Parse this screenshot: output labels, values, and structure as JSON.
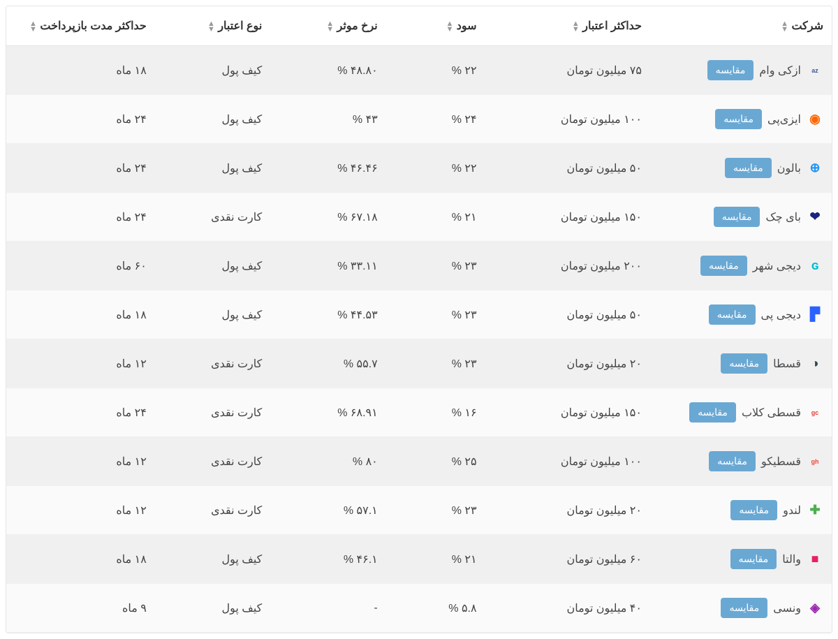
{
  "table": {
    "compare_label": "مقایسه",
    "columns": [
      {
        "key": "company",
        "label": "شرکت"
      },
      {
        "key": "max_credit",
        "label": "حداکثر اعتبار"
      },
      {
        "key": "profit",
        "label": "سود"
      },
      {
        "key": "effective_rate",
        "label": "نرخ موثر"
      },
      {
        "key": "credit_type",
        "label": "نوع اعتبار"
      },
      {
        "key": "max_repayment",
        "label": "حداکثر مدت بازپرداخت"
      }
    ],
    "rows": [
      {
        "company": "ازکی وام",
        "logo_color": "#3b5998",
        "logo_glyph": "az",
        "max_credit": "۷۵ میلیون تومان",
        "profit": "۲۲ %",
        "effective_rate": "۴۸.۸۰ %",
        "credit_type": "کیف پول",
        "max_repayment": "۱۸ ماه"
      },
      {
        "company": "ایزی‌پی",
        "logo_color": "#ff6600",
        "logo_glyph": "◉",
        "max_credit": "۱۰۰ میلیون تومان",
        "profit": "۲۴ %",
        "effective_rate": "۴۳ %",
        "credit_type": "کیف پول",
        "max_repayment": "۲۴ ماه"
      },
      {
        "company": "بالون",
        "logo_color": "#2196f3",
        "logo_glyph": "⊕",
        "max_credit": "۵۰ میلیون تومان",
        "profit": "۲۲ %",
        "effective_rate": "۴۶.۴۶ %",
        "credit_type": "کیف پول",
        "max_repayment": "۲۴ ماه"
      },
      {
        "company": "بای چک",
        "logo_color": "#1a237e",
        "logo_glyph": "❤",
        "max_credit": "۱۵۰ میلیون تومان",
        "profit": "۲۱ %",
        "effective_rate": "۶۷.۱۸ %",
        "credit_type": "کارت نقدی",
        "max_repayment": "۲۴ ماه"
      },
      {
        "company": "دیجی شهر",
        "logo_color": "#00bcd4",
        "logo_glyph": "ɢ",
        "max_credit": "۲۰۰ میلیون تومان",
        "profit": "۲۳ %",
        "effective_rate": "۳۳.۱۱ %",
        "credit_type": "کیف پول",
        "max_repayment": "۶۰ ماه"
      },
      {
        "company": "دیجی پی",
        "logo_color": "#2962ff",
        "logo_glyph": "▛",
        "max_credit": "۵۰ میلیون تومان",
        "profit": "۲۳ %",
        "effective_rate": "۴۴.۵۳ %",
        "credit_type": "کیف پول",
        "max_repayment": "۱۸ ماه"
      },
      {
        "company": "قسطا",
        "logo_color": "#37474f",
        "logo_glyph": "◑",
        "max_credit": "۲۰ میلیون تومان",
        "profit": "۲۳ %",
        "effective_rate": "۵۵.۷ %",
        "credit_type": "کارت نقدی",
        "max_repayment": "۱۲ ماه"
      },
      {
        "company": "قسطی کلاب",
        "logo_color": "#e53935",
        "logo_glyph": "gc",
        "max_credit": "۱۵۰ میلیون تومان",
        "profit": "۱۶ %",
        "effective_rate": "۶۸.۹۱ %",
        "credit_type": "کارت نقدی",
        "max_repayment": "۲۴ ماه"
      },
      {
        "company": "قسطیکو",
        "logo_color": "#f44336",
        "logo_glyph": "gh",
        "max_credit": "۱۰۰ میلیون تومان",
        "profit": "۲۵ %",
        "effective_rate": "۸۰ %",
        "credit_type": "کارت نقدی",
        "max_repayment": "۱۲ ماه"
      },
      {
        "company": "لندو",
        "logo_color": "#4caf50",
        "logo_glyph": "✚",
        "max_credit": "۲۰ میلیون تومان",
        "profit": "۲۳ %",
        "effective_rate": "۵۷.۱ %",
        "credit_type": "کارت نقدی",
        "max_repayment": "۱۲ ماه"
      },
      {
        "company": "والتا",
        "logo_color": "#e91e63",
        "logo_glyph": "■",
        "max_credit": "۶۰ میلیون تومان",
        "profit": "۲۱ %",
        "effective_rate": "۴۶.۱ %",
        "credit_type": "کیف پول",
        "max_repayment": "۱۸ ماه"
      },
      {
        "company": "ونسی",
        "logo_color": "#9c27b0",
        "logo_glyph": "◈",
        "max_credit": "۴۰ میلیون تومان",
        "profit": "۵.۸ %",
        "effective_rate": "-",
        "credit_type": "کیف پول",
        "max_repayment": "۹ ماه"
      }
    ],
    "styling": {
      "header_bg": "#ffffff",
      "row_odd_bg": "#f0f0f0",
      "row_even_bg": "#fafafa",
      "button_bg": "#6aa8d4",
      "button_text": "#ffffff",
      "text_color": "#444444",
      "border_color": "#e5e5e5",
      "font_size_header": 16,
      "font_size_cell": 16,
      "font_size_button": 14
    }
  }
}
